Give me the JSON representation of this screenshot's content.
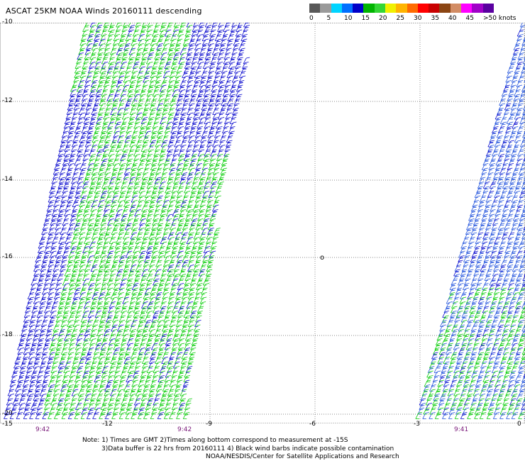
{
  "title": "ASCAT 25KM NOAA Winds 20160111 descending",
  "colorbar": {
    "colors": [
      "#585858",
      "#9a9a9a",
      "#00d4ff",
      "#0070ff",
      "#0000c8",
      "#00b400",
      "#34d634",
      "#f0f000",
      "#ffb400",
      "#ff6a00",
      "#ff0000",
      "#c80000",
      "#8b4513",
      "#d28c64",
      "#ff00ff",
      "#a000c8",
      "#5a00a0"
    ],
    "labels": [
      "0",
      "5",
      "10",
      "15",
      "20",
      "25",
      "30",
      "35",
      "40",
      "45",
      ">50 knots"
    ]
  },
  "lat_labels": [
    "-10",
    "-12",
    "-14",
    "-16",
    "-18",
    "-20"
  ],
  "lon_labels": [
    "-15",
    "-12",
    "-9",
    "-6",
    "-3",
    "0"
  ],
  "time_labels": [
    "9:42",
    "9:42",
    "9:41"
  ],
  "center_marker": "o",
  "notes": [
    "Note: 1) Times are GMT 2)Times along bottom correspond to measurement at -15S",
    "3)Data buffer is 22 hrs from 20160111 4) Black wind barbs indicate possible contamination",
    "NOAA/NESDIS/Center for Satellite Applications and Research"
  ],
  "barb_colors": {
    "green": "#00cc00",
    "blue": "#0000cc",
    "light_blue": "#1e50dc"
  }
}
